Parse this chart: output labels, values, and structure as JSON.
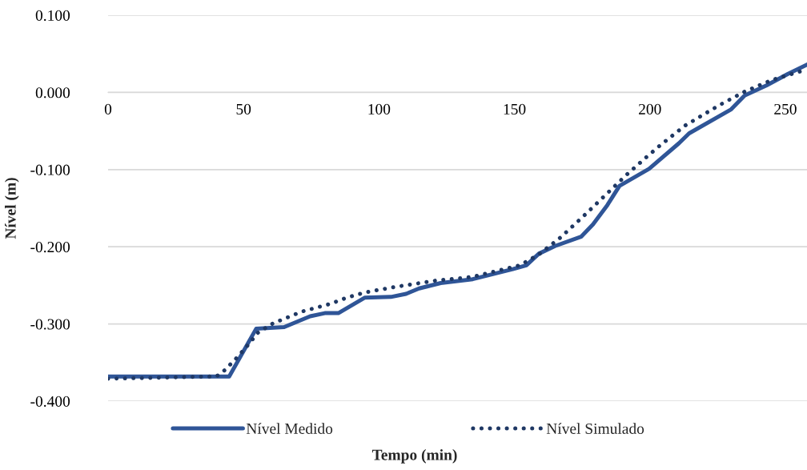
{
  "chart_data": {
    "type": "line",
    "xlabel": "Tempo (min)",
    "ylabel": "Nível (m)",
    "xlim": [
      0,
      258
    ],
    "xticks": [
      0,
      50,
      100,
      150,
      200,
      250
    ],
    "ylim": [
      -0.4,
      0.1
    ],
    "yticks": [
      {
        "value": -0.4,
        "label": "-0.400"
      },
      {
        "value": -0.3,
        "label": "-0.300"
      },
      {
        "value": -0.2,
        "label": "-0.200"
      },
      {
        "value": -0.1,
        "label": "-0.100"
      },
      {
        "value": 0,
        "label": "0.000"
      },
      {
        "value": 0.1,
        "label": "0.100"
      }
    ],
    "grid": "y",
    "legend": "bottom",
    "marker": "none",
    "series": [
      {
        "name": "Nível Medido",
        "color": "#2f5597",
        "line_style": "solid",
        "x": [
          0,
          44.7,
          54.7,
          65,
          74.6,
          80,
          85,
          94.7,
          104.4,
          110,
          114.8,
          122.8,
          134.6,
          149.4,
          154.4,
          159,
          165,
          174.6,
          179,
          184.3,
          188.8,
          199.7,
          210.7,
          214.5,
          230,
          235,
          243,
          251,
          258
        ],
        "values": [
          -0.368,
          -0.368,
          -0.306,
          -0.304,
          -0.29,
          -0.286,
          -0.286,
          -0.266,
          -0.265,
          -0.261,
          -0.254,
          -0.247,
          -0.242,
          -0.229,
          -0.224,
          -0.209,
          -0.199,
          -0.187,
          -0.171,
          -0.146,
          -0.121,
          -0.099,
          -0.066,
          -0.053,
          -0.022,
          -0.004,
          0.009,
          0.024,
          0.036
        ]
      },
      {
        "name": "Nível Simulado",
        "color": "#1f3864",
        "line_style": "dotted",
        "x": [
          0,
          40,
          43,
          48,
          52.7,
          55,
          61,
          71.5,
          82,
          88,
          95,
          106,
          120.7,
          134.6,
          152,
          159,
          167,
          175,
          183,
          191,
          199,
          204,
          213,
          225.4,
          235,
          245,
          255.3,
          258
        ],
        "values": [
          -0.371,
          -0.368,
          -0.36,
          -0.342,
          -0.323,
          -0.312,
          -0.299,
          -0.284,
          -0.274,
          -0.266,
          -0.259,
          -0.252,
          -0.244,
          -0.239,
          -0.224,
          -0.21,
          -0.188,
          -0.162,
          -0.135,
          -0.108,
          -0.083,
          -0.068,
          -0.043,
          -0.017,
          0.001,
          0.016,
          0.027,
          0.029
        ]
      }
    ]
  }
}
